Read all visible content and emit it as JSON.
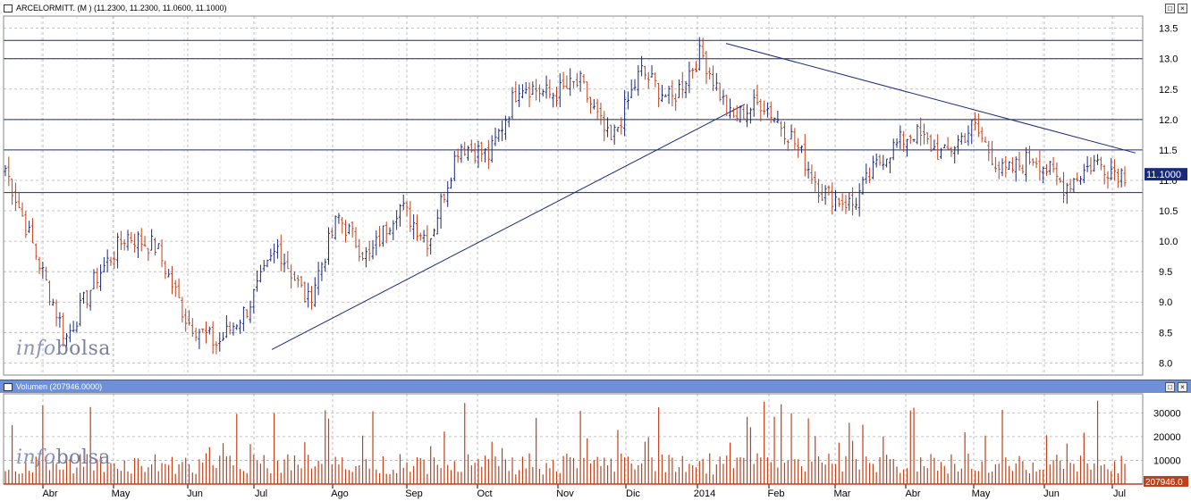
{
  "price_panel": {
    "title": "ARCELORMITT. (M ) (11.2300, 11.2300, 11.0600, 11.1000)",
    "last_value_label": "11.1000"
  },
  "volume_panel": {
    "title": "Volumen (207946.0000)",
    "last_value_label": "207946.0"
  },
  "watermark": {
    "part1": "info",
    "part2": "bolsa"
  },
  "window_buttons": {
    "restore": "□",
    "close": "×"
  },
  "colors": {
    "up_bar": "#1a2a7a",
    "down_bar": "#c0401a",
    "volume_bar": "#c0401a",
    "grid": "#b0b0b0",
    "trend_line": "#1a2a7a",
    "last_value_bg_price": "#1a2a7a",
    "last_value_bg_volume": "#c0401a"
  },
  "chart_data": [
    {
      "type": "ohlc",
      "x_tick_labels": [
        "Abr",
        "May",
        "Jun",
        "Jul",
        "Ago",
        "Sep",
        "Oct",
        "Nov",
        "Dic",
        "2014",
        "Feb",
        "Mar",
        "Abr",
        "May",
        "Jun",
        "Jul"
      ],
      "y_ticks": [
        8.0,
        8.5,
        9.0,
        9.5,
        10.0,
        10.5,
        11.0,
        11.5,
        12.0,
        12.5,
        13.0,
        13.5
      ],
      "ylim": [
        7.8,
        13.7
      ],
      "grid": true,
      "horizontal_lines": [
        13.3,
        13.0,
        12.0,
        11.5,
        10.8
      ],
      "trend_lines": [
        {
          "from": {
            "x": "Jul",
            "y": 8.22
          },
          "to": {
            "x": "Ene 2014",
            "y": 12.25
          }
        },
        {
          "from": {
            "x": "Ene 2014",
            "y": 13.25
          },
          "to": {
            "x": "Jul",
            "y": 11.45
          }
        }
      ],
      "key_prices": [
        {
          "x": "Mar 2013",
          "close": 11.2
        },
        {
          "x": "Abr",
          "close": 9.8
        },
        {
          "x": "Abr",
          "close": 8.4
        },
        {
          "x": "May",
          "close": 9.4
        },
        {
          "x": "May",
          "close": 10.1
        },
        {
          "x": "Jun",
          "close": 9.9
        },
        {
          "x": "Jun",
          "close": 8.7
        },
        {
          "x": "Jul",
          "close": 8.3
        },
        {
          "x": "Jul",
          "close": 8.9
        },
        {
          "x": "Ago",
          "close": 9.9
        },
        {
          "x": "Ago",
          "close": 9.0
        },
        {
          "x": "Ago",
          "close": 10.4
        },
        {
          "x": "Sep",
          "close": 9.7
        },
        {
          "x": "Sep",
          "close": 10.6
        },
        {
          "x": "Oct",
          "close": 10.0
        },
        {
          "x": "Oct",
          "close": 11.6
        },
        {
          "x": "Nov",
          "close": 11.4
        },
        {
          "x": "Nov",
          "close": 12.6
        },
        {
          "x": "Nov",
          "close": 12.4
        },
        {
          "x": "Dic",
          "close": 12.6
        },
        {
          "x": "Dic",
          "close": 11.6
        },
        {
          "x": "Dic",
          "close": 12.8
        },
        {
          "x": "2014",
          "close": 12.3
        },
        {
          "x": "2014",
          "close": 13.1
        },
        {
          "x": "Feb",
          "close": 12.0
        },
        {
          "x": "Feb",
          "close": 12.3
        },
        {
          "x": "Feb",
          "close": 11.7
        },
        {
          "x": "Mar",
          "close": 10.8
        },
        {
          "x": "Mar",
          "close": 10.6
        },
        {
          "x": "Abr",
          "close": 11.4
        },
        {
          "x": "Abr",
          "close": 11.8
        },
        {
          "x": "May",
          "close": 11.4
        },
        {
          "x": "May",
          "close": 11.9
        },
        {
          "x": "Jun",
          "close": 11.1
        },
        {
          "x": "Jun",
          "close": 11.4
        },
        {
          "x": "Jun",
          "close": 10.9
        },
        {
          "x": "Jul",
          "close": 11.3
        },
        {
          "x": "Jul",
          "close": 11.1
        }
      ]
    },
    {
      "type": "bar",
      "name": "Volumen",
      "y_ticks": [
        10000,
        20000,
        30000
      ],
      "ylim": [
        0,
        38000
      ],
      "grid": true,
      "last_value": 207946.0
    }
  ]
}
